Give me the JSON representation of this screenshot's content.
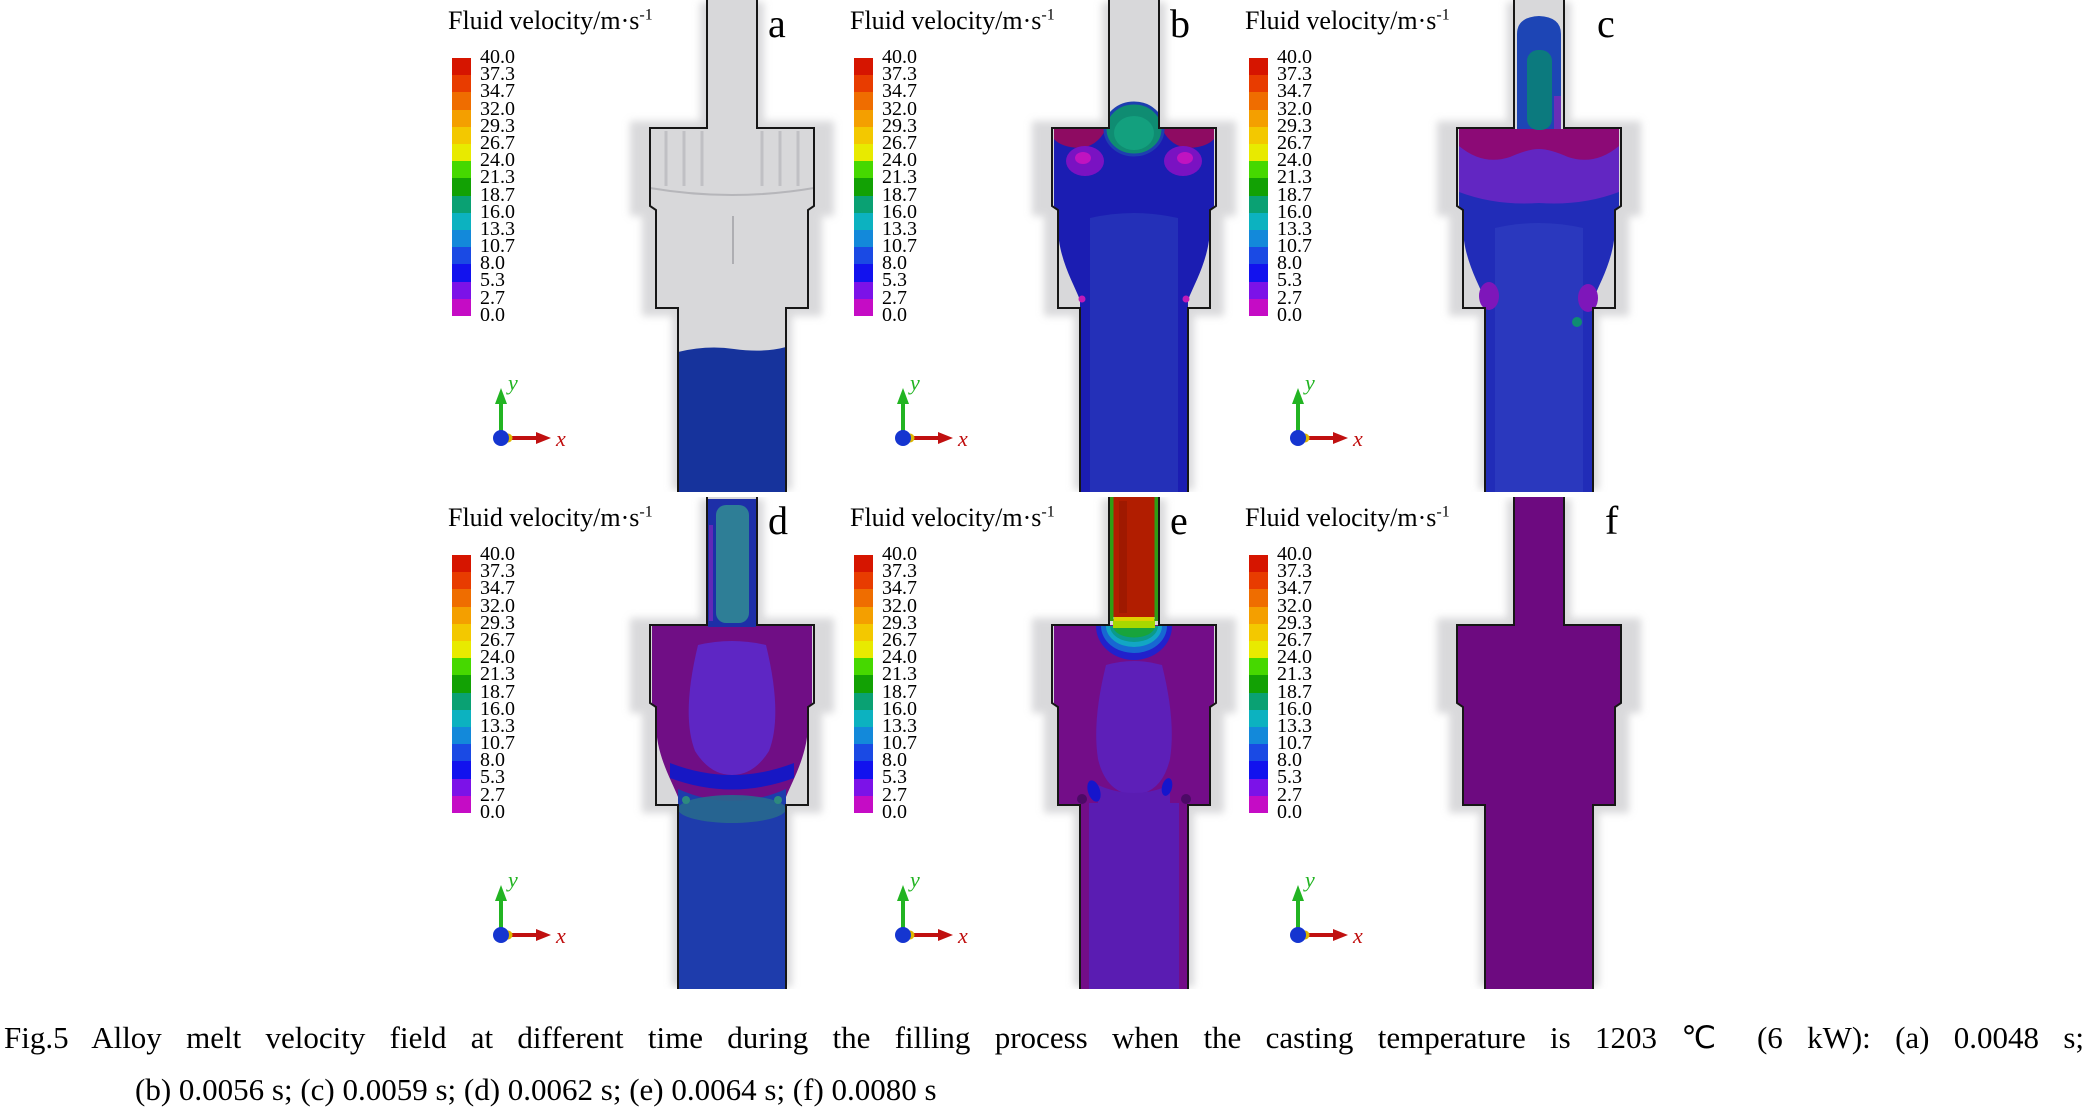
{
  "legend": {
    "title_main": "Fluid velocity/m·s",
    "title_sup": "-1",
    "ticks": [
      "40.0",
      "37.3",
      "34.7",
      "32.0",
      "29.3",
      "26.7",
      "24.0",
      "21.3",
      "18.7",
      "16.0",
      "13.3",
      "10.7",
      "8.0",
      "5.3",
      "2.7",
      "0.0"
    ],
    "colors": [
      "#d61500",
      "#e83c00",
      "#ef6d00",
      "#f49f00",
      "#f3c800",
      "#e8ea00",
      "#46d800",
      "#12a104",
      "#0aa173",
      "#0cb2c0",
      "#1389da",
      "#1a4ae4",
      "#1212ee",
      "#7c12e8",
      "#c50cc5"
    ]
  },
  "axis_triad": {
    "x_label": "x",
    "y_label": "y",
    "x_color": "#c01010",
    "y_color": "#22b422",
    "origin_color": "#1535d0"
  },
  "panels": [
    {
      "letter": "a"
    },
    {
      "letter": "b"
    },
    {
      "letter": "c"
    },
    {
      "letter": "d"
    },
    {
      "letter": "e"
    },
    {
      "letter": "f"
    }
  ],
  "caption": {
    "line1": "Fig.5 Alloy melt velocity field at different time during the filling process when the casting temperature is 1203 ℃ (6 kW): (a) 0.0048 s;",
    "line2": "(b) 0.0056 s; (c) 0.0059 s; (d) 0.0062 s; (e) 0.0064 s; (f) 0.0080 s"
  },
  "chart_data": {
    "type": "heatmap",
    "title": "Fluid velocity/m·s⁻¹",
    "colorbar_ticks": [
      40.0,
      37.3,
      34.7,
      32.0,
      29.3,
      26.7,
      24.0,
      21.3,
      18.7,
      16.0,
      13.3,
      10.7,
      8.0,
      5.3,
      2.7,
      0.0
    ],
    "colorbar_range": [
      0.0,
      40.0
    ],
    "panels": [
      {
        "label": "a",
        "time_s": 0.0048
      },
      {
        "label": "b",
        "time_s": 0.0056
      },
      {
        "label": "c",
        "time_s": 0.0059
      },
      {
        "label": "d",
        "time_s": 0.0062
      },
      {
        "label": "e",
        "time_s": 0.0064
      },
      {
        "label": "f",
        "time_s": 0.008
      }
    ],
    "casting_temperature": "1203 ℃",
    "power": "6 kW"
  }
}
